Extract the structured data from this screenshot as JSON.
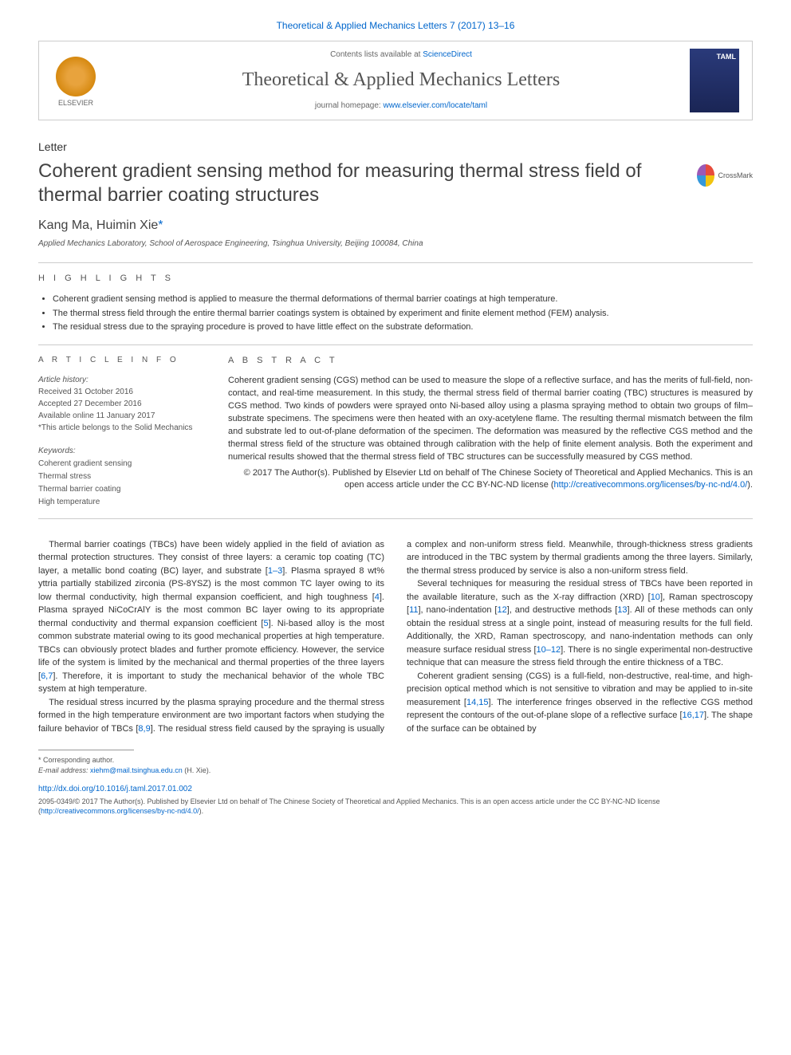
{
  "journal_ref": "Theoretical & Applied Mechanics Letters 7 (2017) 13–16",
  "header": {
    "contents_prefix": "Contents lists available at ",
    "contents_link": "ScienceDirect",
    "journal_name": "Theoretical & Applied Mechanics Letters",
    "homepage_prefix": "journal homepage: ",
    "homepage_link": "www.elsevier.com/locate/taml",
    "publisher_label": "ELSEVIER",
    "thumb_label": "TAML"
  },
  "article": {
    "type": "Letter",
    "title": "Coherent gradient sensing method for measuring thermal stress field of thermal barrier coating structures",
    "authors_html": "Kang Ma, Huimin Xie",
    "author_link": "*",
    "affiliation": "Applied Mechanics Laboratory, School of Aerospace Engineering, Tsinghua University, Beijing 100084, China",
    "crossmark_label": "CrossMark"
  },
  "highlights": {
    "label": "h i g h l i g h t s",
    "items": [
      "Coherent gradient sensing method is applied to measure the thermal deformations of thermal barrier coatings at high temperature.",
      "The thermal stress field through the entire thermal barrier coatings system is obtained by experiment and finite element method (FEM) analysis.",
      "The residual stress due to the spraying procedure is proved to have little effect on the substrate deformation."
    ]
  },
  "info": {
    "label": "a r t i c l e   i n f o",
    "history_label": "Article history:",
    "received": "Received 31 October 2016",
    "accepted": "Accepted 27 December 2016",
    "online": "Available online 11 January 2017",
    "note": "*This article belongs to the Solid Mechanics",
    "keywords_label": "Keywords:",
    "keywords": [
      "Coherent gradient sensing",
      "Thermal stress",
      "Thermal barrier coating",
      "High temperature"
    ]
  },
  "abstract": {
    "label": "a b s t r a c t",
    "text": "Coherent gradient sensing (CGS) method can be used to measure the slope of a reflective surface, and has the merits of full-field, non-contact, and real-time measurement. In this study, the thermal stress field of thermal barrier coating (TBC) structures is measured by CGS method. Two kinds of powders were sprayed onto Ni-based alloy using a plasma spraying method to obtain two groups of film–substrate specimens. The specimens were then heated with an oxy-acetylene flame. The resulting thermal mismatch between the film and substrate led to out-of-plane deformation of the specimen. The deformation was measured by the reflective CGS method and the thermal stress field of the structure was obtained through calibration with the help of finite element analysis. Both the experiment and numerical results showed that the thermal stress field of TBC structures can be successfully measured by CGS method.",
    "copyright": "© 2017 The Author(s). Published by Elsevier Ltd on behalf of The Chinese Society of Theoretical and Applied Mechanics. This is an open access article under the CC BY-NC-ND license (",
    "cc_link": "http://creativecommons.org/licenses/by-nc-nd/4.0/",
    "copyright_close": ")."
  },
  "body": {
    "p1_a": "Thermal barrier coatings (TBCs) have been widely applied in the field of aviation as thermal protection structures. They consist of three layers: a ceramic top coating (TC) layer, a metallic bond coating (BC) layer, and substrate [",
    "p1_ref1": "1–3",
    "p1_b": "]. Plasma sprayed 8 wt% yttria partially stabilized zirconia (PS-8YSZ) is the most common TC layer owing to its low thermal conductivity, high thermal expansion coefficient, and high toughness [",
    "p1_ref2": "4",
    "p1_c": "]. Plasma sprayed NiCoCrAlY is the most common BC layer owing to its appropriate thermal conductivity and thermal expansion coefficient [",
    "p1_ref3": "5",
    "p1_d": "]. Ni-based alloy is the most common substrate material owing to its good mechanical properties at high temperature. TBCs can obviously protect blades and further promote efficiency. However, the service life of the system is limited by the mechanical and thermal properties of the three layers [",
    "p1_ref4": "6,7",
    "p1_e": "]. Therefore, it is important to study the mechanical behavior of the whole TBC system at high temperature.",
    "p2_a": "The residual stress incurred by the plasma spraying procedure and the thermal stress formed in the high temperature environment are two important factors when studying the failure behavior of TBCs [",
    "p2_ref1": "8,9",
    "p2_b": "]. The residual stress field caused by the spraying is usually a complex and non-uniform stress field. Meanwhile, through-thickness stress gradients are introduced in the TBC system by thermal gradients among the three layers. Similarly, the thermal stress produced by service is also a non-uniform stress field.",
    "p3_a": "Several techniques for measuring the residual stress of TBCs have been reported in the available literature, such as the X-ray diffraction (XRD) [",
    "p3_ref1": "10",
    "p3_b": "], Raman spectroscopy [",
    "p3_ref2": "11",
    "p3_c": "], nano-indentation [",
    "p3_ref3": "12",
    "p3_d": "], and destructive methods [",
    "p3_ref4": "13",
    "p3_e": "]. All of these methods can only obtain the residual stress at a single point, instead of measuring results for the full field. Additionally, the XRD, Raman spectroscopy, and nano-indentation methods can only measure surface residual stress [",
    "p3_ref5": "10–12",
    "p3_f": "]. There is no single experimental non-destructive technique that can measure the stress field through the entire thickness of a TBC.",
    "p4_a": "Coherent gradient sensing (CGS) is a full-field, non-destructive, real-time, and high-precision optical method which is not sensitive to vibration and may be applied to in-site measurement [",
    "p4_ref1": "14,15",
    "p4_b": "]. The interference fringes observed in the reflective CGS method represent the contours of the out-of-plane slope of a reflective surface [",
    "p4_ref2": "16,17",
    "p4_c": "]. The shape of the surface can be obtained by"
  },
  "footnotes": {
    "corr_label": "Corresponding author.",
    "email_label": "E-mail address:",
    "email": "xiehm@mail.tsinghua.edu.cn",
    "email_name": "(H. Xie)."
  },
  "footer": {
    "doi": "http://dx.doi.org/10.1016/j.taml.2017.01.002",
    "issn_line": "2095-0349/© 2017 The Author(s). Published by Elsevier Ltd on behalf of The Chinese Society of Theoretical and Applied Mechanics. This is an open access article under the CC BY-NC-ND license (",
    "cc_link": "http://creativecommons.org/licenses/by-nc-nd/4.0/",
    "issn_close": ")."
  },
  "colors": {
    "link": "#0066cc",
    "text": "#333333",
    "muted": "#555555",
    "rule": "#cccccc"
  }
}
